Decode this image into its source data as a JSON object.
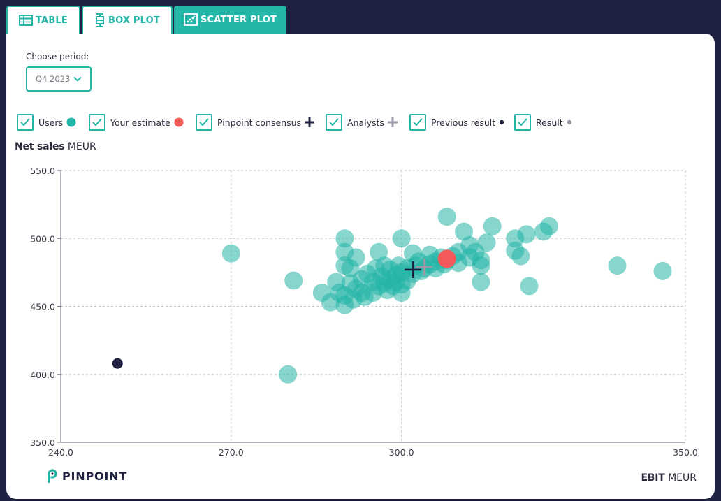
{
  "tabs": [
    {
      "label": "TABLE",
      "icon": "table-icon",
      "active": false
    },
    {
      "label": "BOX PLOT",
      "icon": "box-plot-icon",
      "active": false
    },
    {
      "label": "SCATTER PLOT",
      "icon": "scatter-plot-icon",
      "active": true
    }
  ],
  "period": {
    "label": "Choose period:",
    "value": "Q4 2023"
  },
  "legend": [
    {
      "label": "Users",
      "checked": true,
      "marker": "dot",
      "color": "#23b5a6"
    },
    {
      "label": "Your estimate",
      "checked": true,
      "marker": "dot",
      "color": "#f35b5b"
    },
    {
      "label": "Pinpoint consensus",
      "checked": true,
      "marker": "plus",
      "color": "#1f2140"
    },
    {
      "label": "Analysts",
      "checked": true,
      "marker": "plus",
      "color": "#9a9aa6"
    },
    {
      "label": "Previous result",
      "checked": true,
      "marker": "small-dot",
      "color": "#1f2140"
    },
    {
      "label": "Result",
      "checked": true,
      "marker": "small-dot",
      "color": "#9a9aa6"
    }
  ],
  "y_axis": {
    "name": "Net sales",
    "unit": "MEUR"
  },
  "x_axis": {
    "name": "EBIT",
    "unit": "MEUR"
  },
  "brand": {
    "name": "PINPOINT"
  },
  "colors": {
    "accent": "#23b5a6",
    "dark": "#1f2140",
    "estimate": "#f35b5b",
    "analyst": "#9a9aa6"
  },
  "chart_data": {
    "type": "scatter",
    "xlim": [
      240,
      350
    ],
    "ylim": [
      350,
      550
    ],
    "x_ticks": [
      "240.0",
      "270.0",
      "300.0",
      "350.0"
    ],
    "y_ticks": [
      "350.0",
      "400.0",
      "450.0",
      "500.0",
      "550.0"
    ],
    "grid": true,
    "users": [
      [
        270,
        489
      ],
      [
        281,
        469
      ],
      [
        280,
        400
      ],
      [
        286,
        460
      ],
      [
        287.5,
        453
      ],
      [
        288.5,
        468
      ],
      [
        289,
        460
      ],
      [
        290,
        451
      ],
      [
        290,
        458
      ],
      [
        290,
        480
      ],
      [
        290,
        490
      ],
      [
        290,
        500
      ],
      [
        291,
        467
      ],
      [
        291,
        478
      ],
      [
        291.5,
        455
      ],
      [
        292,
        486
      ],
      [
        292,
        463
      ],
      [
        293,
        470
      ],
      [
        293,
        460
      ],
      [
        293.5,
        457
      ],
      [
        294,
        474
      ],
      [
        295,
        460
      ],
      [
        295,
        468
      ],
      [
        295.5,
        478
      ],
      [
        296,
        490
      ],
      [
        296,
        465
      ],
      [
        296.5,
        472
      ],
      [
        297,
        480
      ],
      [
        297,
        467
      ],
      [
        297.5,
        462
      ],
      [
        298,
        470
      ],
      [
        298,
        477
      ],
      [
        298.5,
        465
      ],
      [
        299,
        473
      ],
      [
        299,
        468
      ],
      [
        299.5,
        480
      ],
      [
        300,
        460
      ],
      [
        300,
        466
      ],
      [
        300,
        475
      ],
      [
        300,
        500
      ],
      [
        301,
        478
      ],
      [
        301,
        469
      ],
      [
        302,
        474
      ],
      [
        302,
        489
      ],
      [
        302.5,
        480
      ],
      [
        303,
        483
      ],
      [
        303.5,
        476
      ],
      [
        304,
        478
      ],
      [
        305,
        481
      ],
      [
        305,
        488
      ],
      [
        306,
        483
      ],
      [
        306,
        478
      ],
      [
        307,
        486
      ],
      [
        307.5,
        481
      ],
      [
        308,
        484
      ],
      [
        309,
        487
      ],
      [
        310,
        482
      ],
      [
        310,
        490
      ],
      [
        311,
        505
      ],
      [
        312,
        495
      ],
      [
        312,
        486
      ],
      [
        313,
        490
      ],
      [
        314,
        480
      ],
      [
        314,
        484
      ],
      [
        314,
        468
      ],
      [
        315,
        497
      ],
      [
        316,
        509
      ],
      [
        320,
        500
      ],
      [
        320,
        491
      ],
      [
        321,
        487
      ],
      [
        322,
        503
      ],
      [
        322.5,
        465
      ],
      [
        325,
        505
      ],
      [
        326,
        509
      ],
      [
        308,
        516
      ],
      [
        338,
        480
      ],
      [
        346,
        476
      ]
    ],
    "your_estimate": [
      308,
      485
    ],
    "pinpoint_consensus": [
      302,
      477
    ],
    "analysts": [
      304,
      479
    ],
    "previous_result": [
      250,
      408
    ],
    "result": null
  }
}
